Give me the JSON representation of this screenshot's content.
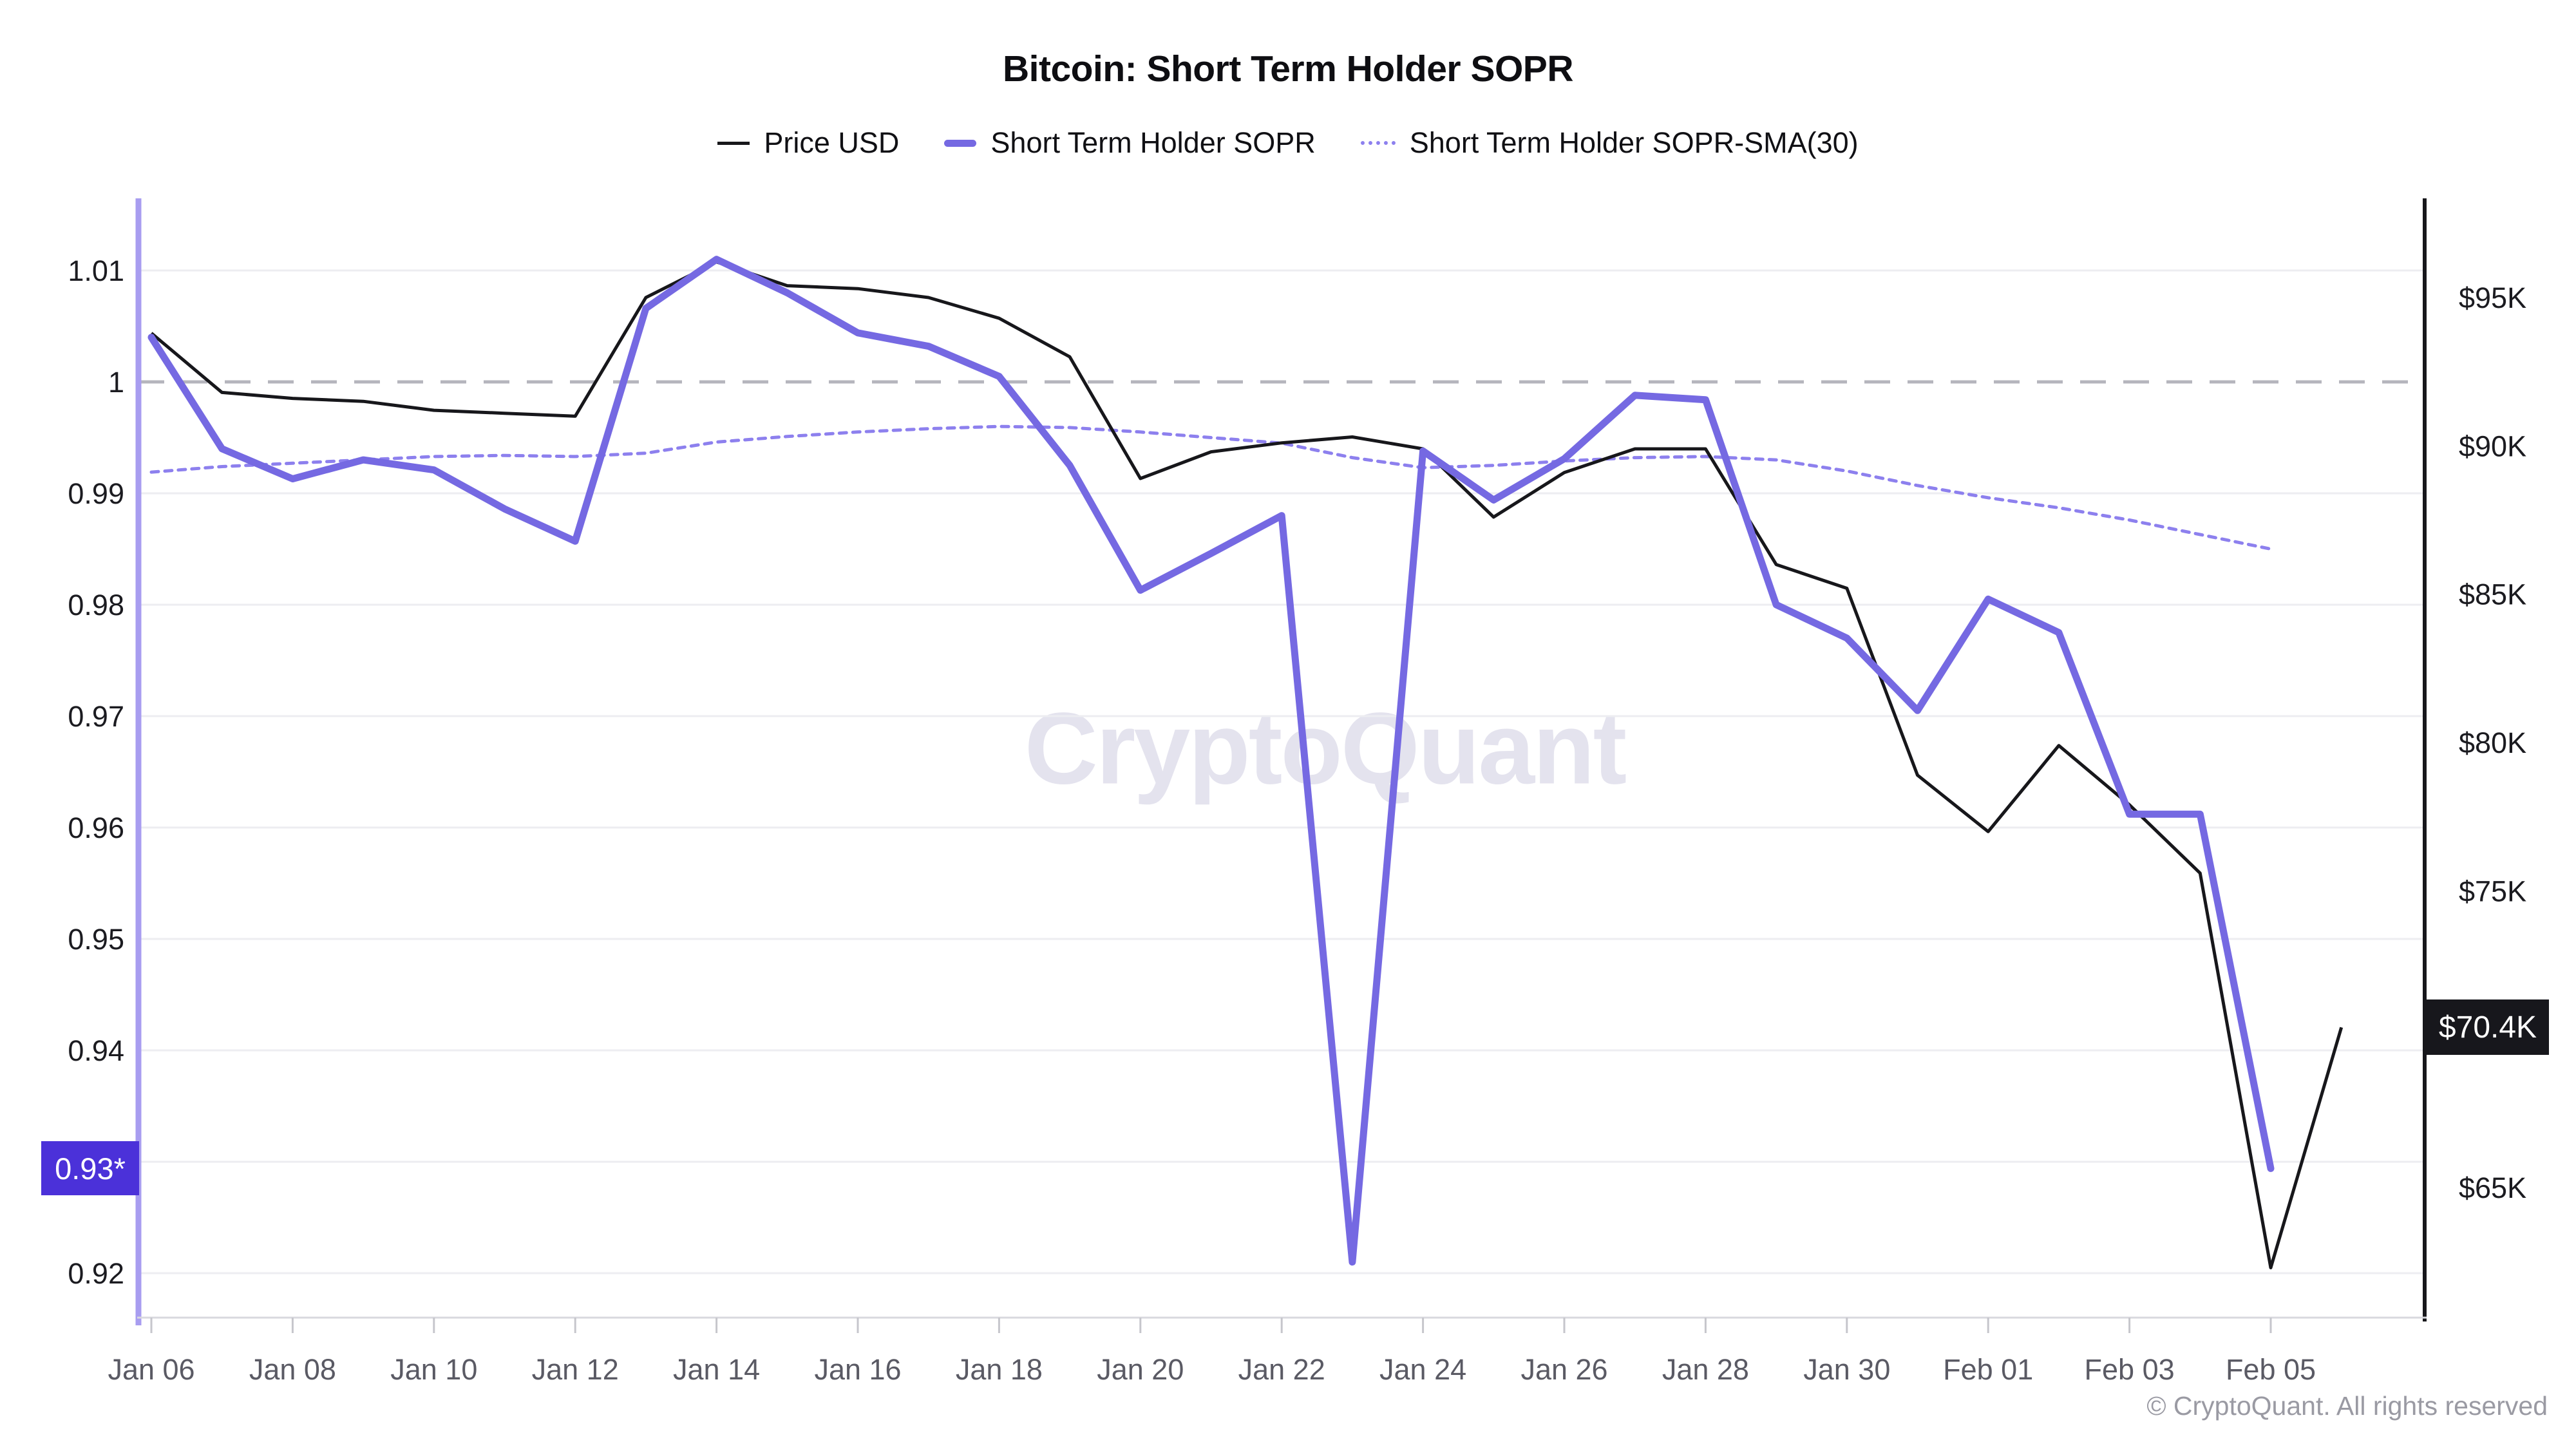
{
  "title": "Bitcoin: Short Term Holder SOPR",
  "watermark": "CryptoQuant",
  "footer": "© CryptoQuant. All rights reserved",
  "legend": [
    {
      "label": "Price USD",
      "swatch": "price-line",
      "color": "#17171b"
    },
    {
      "label": "Short Term Holder SOPR",
      "swatch": "thick-line",
      "color": "#7569e2"
    },
    {
      "label": "Short Term Holder SOPR-SMA(30)",
      "swatch": "dotted-line",
      "color": "#8d80ee"
    }
  ],
  "badges": {
    "sopr_current": {
      "label": "0.93*",
      "color": "#4b31d9",
      "value": 0.9294
    },
    "price_current": {
      "label": "$70.4K",
      "color": "#17171c",
      "value": 70.4
    }
  },
  "chart_data": {
    "type": "line",
    "title": "Bitcoin: Short Term Holder SOPR",
    "grid": "horizontal-only",
    "legend_position": "top-center",
    "dates": [
      "Jan 06",
      "Jan 07",
      "Jan 08",
      "Jan 09",
      "Jan 10",
      "Jan 11",
      "Jan 12",
      "Jan 13",
      "Jan 14",
      "Jan 15",
      "Jan 16",
      "Jan 17",
      "Jan 18",
      "Jan 19",
      "Jan 20",
      "Jan 21",
      "Jan 22",
      "Jan 23",
      "Jan 24",
      "Jan 25",
      "Jan 26",
      "Jan 27",
      "Jan 28",
      "Jan 29",
      "Jan 30",
      "Jan 31",
      "Feb 01",
      "Feb 02",
      "Feb 03",
      "Feb 04",
      "Feb 05",
      "Feb 06"
    ],
    "series": [
      {
        "name": "Price USD",
        "axis": "right",
        "color": "#17171b",
        "style": "solid",
        "unit": "K USD",
        "values": [
          93.8,
          91.8,
          91.6,
          91.5,
          91.2,
          91.1,
          91.0,
          95.0,
          96.2,
          95.4,
          95.3,
          95.0,
          94.3,
          93.0,
          88.9,
          89.8,
          90.1,
          90.3,
          89.9,
          87.6,
          89.1,
          89.9,
          89.9,
          86.0,
          85.2,
          78.9,
          77.0,
          79.9,
          77.9,
          75.6,
          62.3,
          70.4
        ]
      },
      {
        "name": "Short Term Holder SOPR",
        "axis": "left",
        "color": "#7569e2",
        "style": "solid",
        "unit": "ratio",
        "values": [
          1.004,
          0.994,
          0.9913,
          0.993,
          0.9921,
          0.9886,
          0.9857,
          1.0066,
          1.011,
          1.008,
          1.0044,
          1.0032,
          1.0005,
          0.9925,
          0.9813,
          0.9846,
          0.988,
          0.921,
          0.9938,
          0.9894,
          0.9931,
          0.9988,
          0.9984,
          0.98,
          0.977,
          0.9705,
          0.9805,
          0.9775,
          0.9612,
          0.9612,
          0.9294,
          null
        ]
      },
      {
        "name": "Short Term Holder SOPR-SMA(30)",
        "axis": "left",
        "color": "#8d80ee",
        "style": "dotted",
        "unit": "ratio",
        "values": [
          0.9919,
          0.9924,
          0.9927,
          0.993,
          0.9933,
          0.9934,
          0.9933,
          0.9936,
          0.9946,
          0.9951,
          0.9955,
          0.9958,
          0.996,
          0.9959,
          0.9955,
          0.995,
          0.9945,
          0.9932,
          0.9923,
          0.9925,
          0.9929,
          0.9932,
          0.9933,
          0.993,
          0.992,
          0.9907,
          0.9896,
          0.9887,
          0.9876,
          0.9863,
          0.985,
          null
        ]
      }
    ],
    "left_axis": {
      "ticks": [
        {
          "label": "1.01",
          "value": 1.01
        },
        {
          "label": "1",
          "value": 1.0
        },
        {
          "label": "0.99",
          "value": 0.99
        },
        {
          "label": "0.98",
          "value": 0.98
        },
        {
          "label": "0.97",
          "value": 0.97
        },
        {
          "label": "0.96",
          "value": 0.96
        },
        {
          "label": "0.95",
          "value": 0.95
        },
        {
          "label": "0.94",
          "value": 0.94
        },
        {
          "label": "0.93",
          "value": 0.93
        },
        {
          "label": "0.92",
          "value": 0.92
        }
      ],
      "baseline_value": 1.0,
      "range": [
        0.916,
        1.016
      ]
    },
    "right_axis": {
      "ticks": [
        {
          "label": "$95K",
          "value": 95
        },
        {
          "label": "$90K",
          "value": 90
        },
        {
          "label": "$85K",
          "value": 85
        },
        {
          "label": "$80K",
          "value": 80
        },
        {
          "label": "$75K",
          "value": 75
        },
        {
          "label": "$70K",
          "value": 70
        },
        {
          "label": "$65K",
          "value": 65
        }
      ],
      "range": [
        60.6,
        98.3
      ]
    },
    "x_axis": {
      "tick_every": 2
    }
  }
}
